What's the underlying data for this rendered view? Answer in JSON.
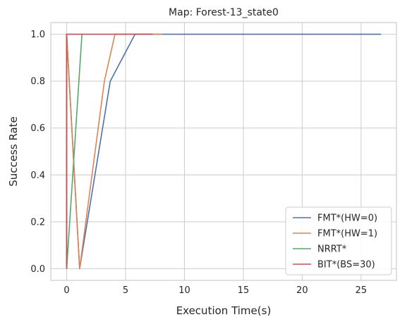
{
  "chart_data": {
    "type": "line",
    "title": "Map: Forest-13_state0",
    "xlabel": "Execution Time(s)",
    "ylabel": "Success Rate",
    "xlim": [
      -1.35,
      28.0
    ],
    "ylim": [
      -0.05,
      1.05
    ],
    "xticks": [
      0,
      5,
      10,
      15,
      20,
      25
    ],
    "yticks": [
      0.0,
      0.2,
      0.4,
      0.6,
      0.8,
      1.0
    ],
    "xtick_labels": [
      "0",
      "5",
      "10",
      "15",
      "20",
      "25"
    ],
    "ytick_labels": [
      "0.0",
      "0.2",
      "0.4",
      "0.6",
      "0.8",
      "1.0"
    ],
    "grid": true,
    "legend_position": "bottom-right",
    "series": [
      {
        "name": "FMT*(HW=0)",
        "color": "#4c72b0",
        "x": [
          0.0,
          0.0,
          1.1,
          3.7,
          5.8,
          26.7
        ],
        "y": [
          0.0,
          1.0,
          0.0,
          0.8,
          1.0,
          1.0
        ]
      },
      {
        "name": "FMT*(HW=1)",
        "color": "#dd8452",
        "x": [
          0.0,
          0.0,
          0.65,
          1.1,
          3.2,
          4.1,
          8.1
        ],
        "y": [
          0.0,
          1.0,
          0.4,
          0.0,
          0.8,
          1.0,
          1.0
        ]
      },
      {
        "name": "NRRT*",
        "color": "#55a868",
        "x": [
          0.0,
          1.3,
          1.3
        ],
        "y": [
          0.0,
          1.0,
          1.0
        ]
      },
      {
        "name": "BIT*(BS=30)",
        "color": "#c44e52",
        "x": [
          0.0,
          0.0,
          7.3
        ],
        "y": [
          0.0,
          1.0,
          1.0
        ]
      }
    ]
  }
}
